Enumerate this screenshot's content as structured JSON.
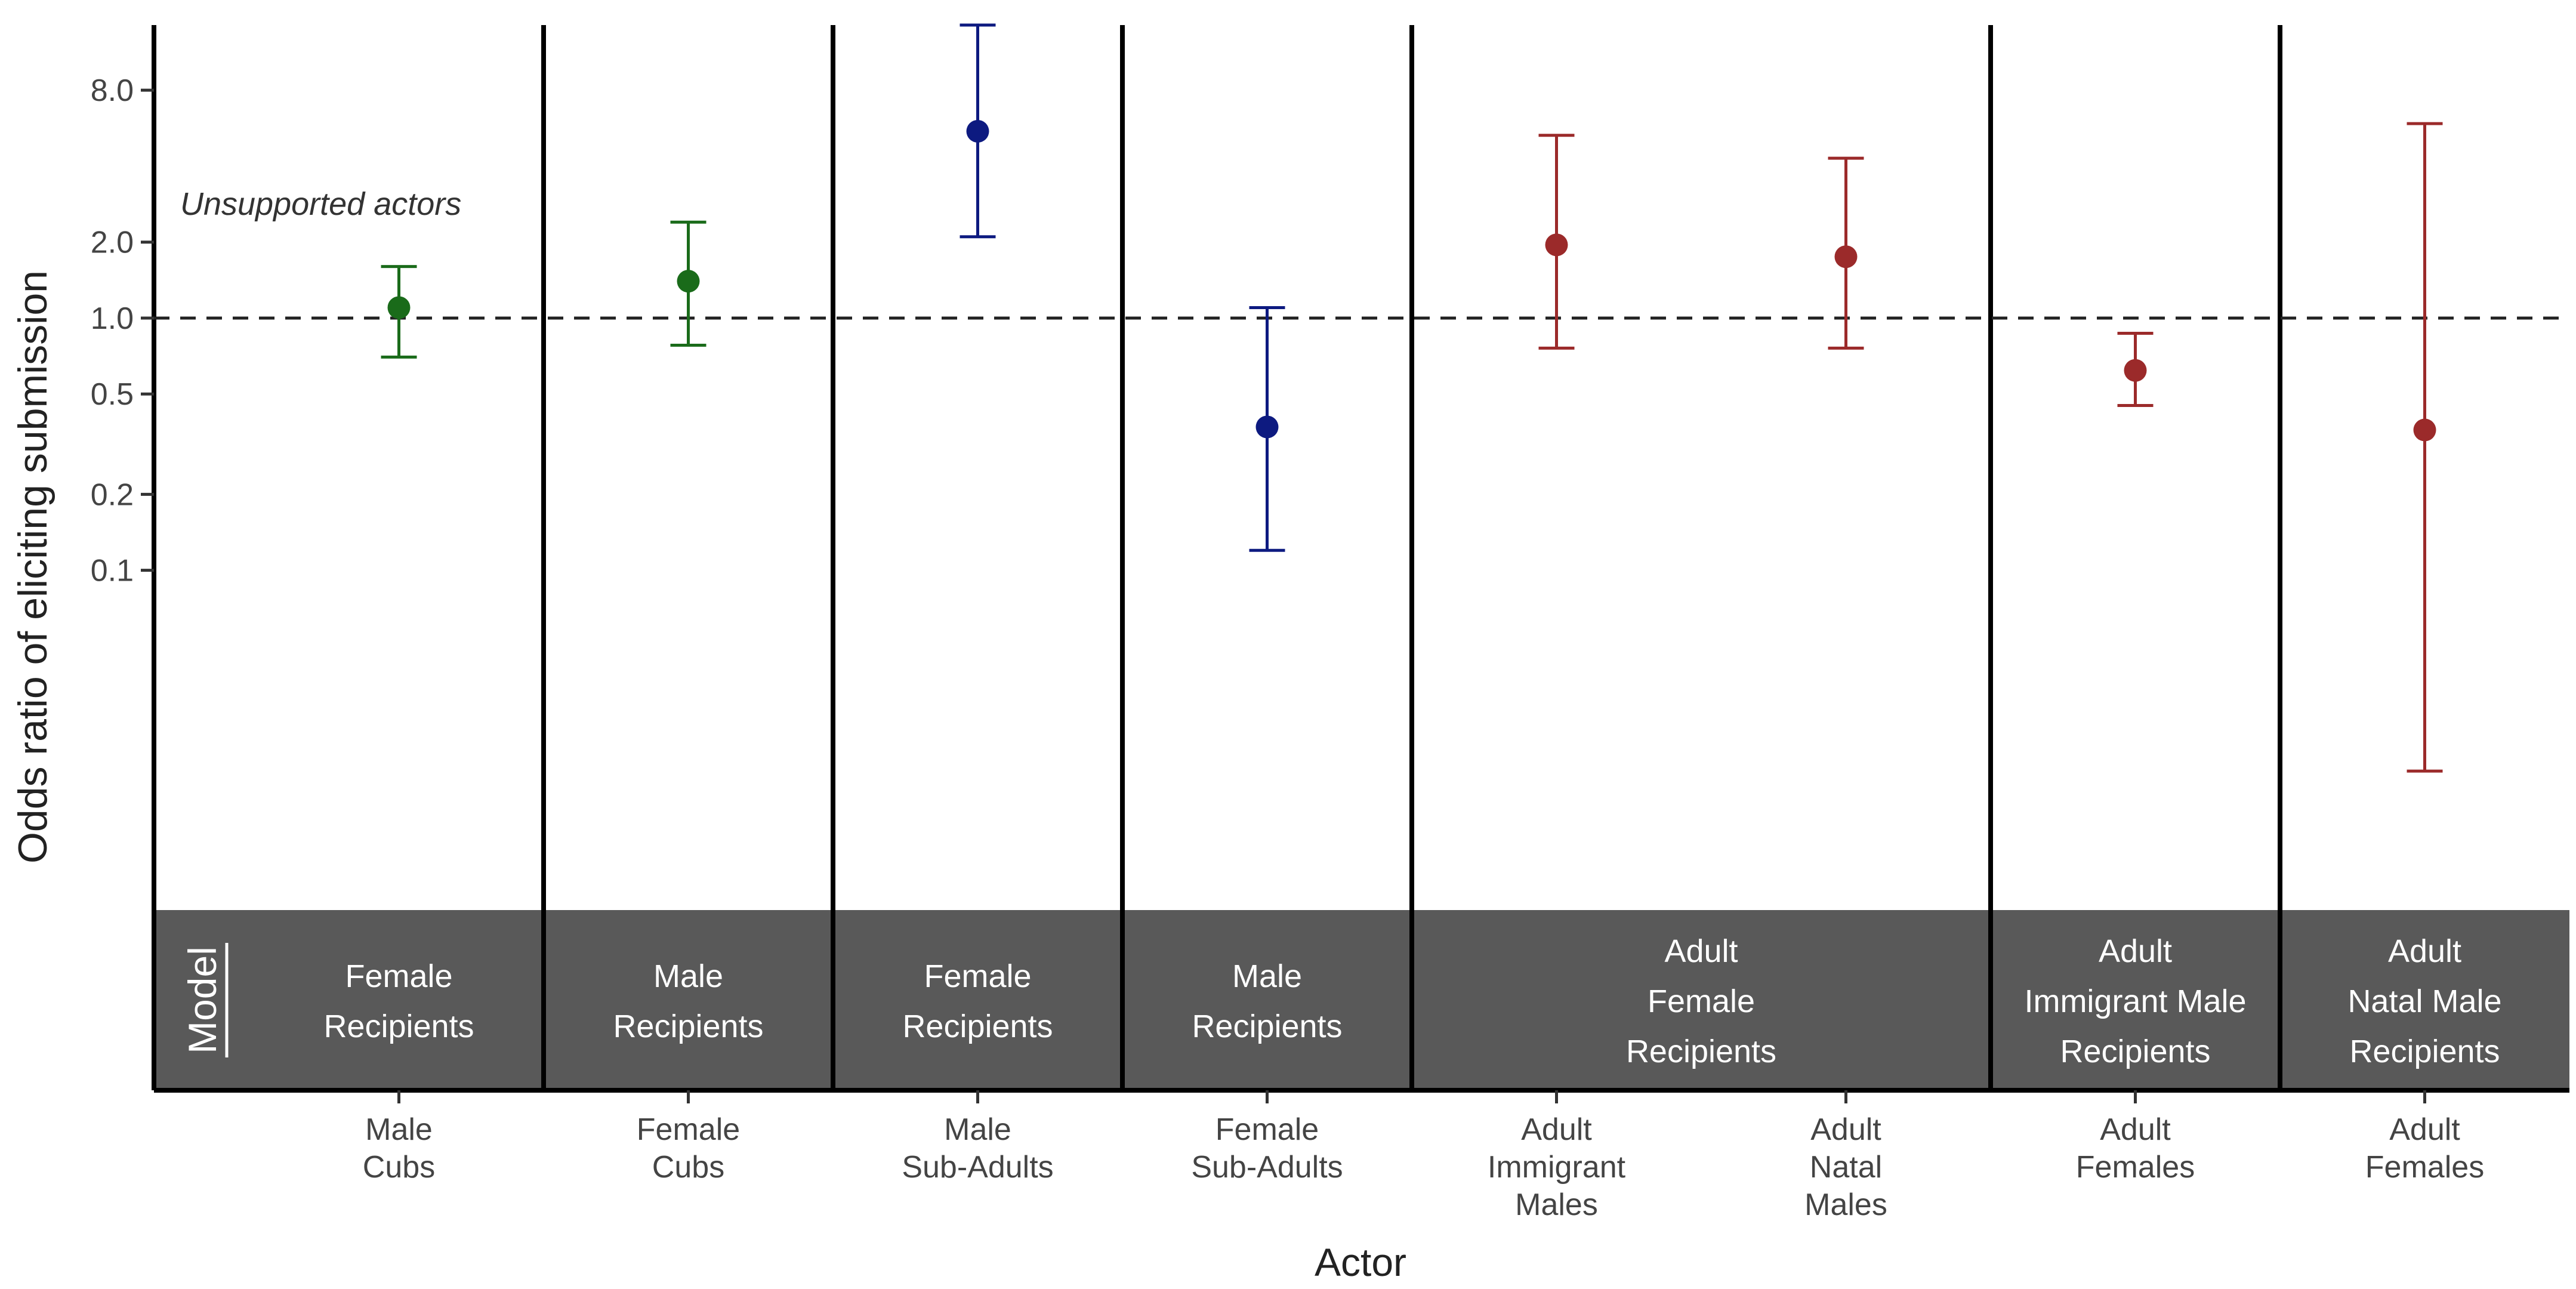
{
  "chart_data": {
    "type": "scatter",
    "subtype": "point-range",
    "xlabel": "Actor",
    "ylabel": "Odds ratio of eliciting submission",
    "y_scale": "log",
    "ylim": [
      0.0045,
      14.5
    ],
    "y_ticks": [
      0.1,
      0.2,
      0.5,
      1.0,
      2.0,
      8.0
    ],
    "y_tick_labels": [
      "0.1",
      "0.2",
      "0.5",
      "1.0",
      "2.0",
      "8.0"
    ],
    "grid": false,
    "reference_line": {
      "y": 1.0,
      "style": "dashed"
    },
    "annotation": "Unsupported actors",
    "model_label": "Model",
    "panels": [
      {
        "label": [
          "Female",
          "Recipients"
        ],
        "units": 1
      },
      {
        "label": [
          "Male",
          "Recipients"
        ],
        "units": 1
      },
      {
        "label": [
          "Female",
          "Recipients"
        ],
        "units": 1
      },
      {
        "label": [
          "Male",
          "Recipients"
        ],
        "units": 1
      },
      {
        "label": [
          "Adult",
          "Female",
          "Recipients"
        ],
        "units": 2
      },
      {
        "label": [
          "Adult",
          "Immigrant Male",
          "Recipients"
        ],
        "units": 1
      },
      {
        "label": [
          "Adult",
          "Natal Male",
          "Recipients"
        ],
        "units": 1
      }
    ],
    "points": [
      {
        "actor": [
          "Male",
          "Cubs"
        ],
        "panel": 0,
        "slot": 0,
        "estimate": 1.1,
        "lower": 0.7,
        "upper": 1.6,
        "color": "#1a6b1a"
      },
      {
        "actor": [
          "Female",
          "Cubs"
        ],
        "panel": 1,
        "slot": 0,
        "estimate": 1.4,
        "lower": 0.78,
        "upper": 2.4,
        "color": "#1a6b1a"
      },
      {
        "actor": [
          "Male",
          "Sub-Adults"
        ],
        "panel": 2,
        "slot": 0,
        "estimate": 5.5,
        "lower": 2.1,
        "upper": 14.5,
        "color": "#0d1a80"
      },
      {
        "actor": [
          "Female",
          "Sub-Adults"
        ],
        "panel": 3,
        "slot": 0,
        "estimate": 0.37,
        "lower": 0.12,
        "upper": 1.1,
        "color": "#0d1a80"
      },
      {
        "actor": [
          "Adult",
          "Immigrant",
          "Males"
        ],
        "panel": 4,
        "slot": 0,
        "estimate": 1.95,
        "lower": 0.76,
        "upper": 5.3,
        "color": "#9b2a2a"
      },
      {
        "actor": [
          "Adult",
          "Natal",
          "Males"
        ],
        "panel": 4,
        "slot": 1,
        "estimate": 1.75,
        "lower": 0.76,
        "upper": 4.3,
        "color": "#9b2a2a"
      },
      {
        "actor": [
          "Adult",
          "Females"
        ],
        "panel": 5,
        "slot": 0,
        "estimate": 0.62,
        "lower": 0.45,
        "upper": 0.87,
        "color": "#9b2a2a"
      },
      {
        "actor": [
          "Adult",
          "Females"
        ],
        "panel": 6,
        "slot": 0,
        "estimate": 0.36,
        "lower": 0.016,
        "upper": 5.9,
        "color": "#9b2a2a"
      }
    ]
  }
}
